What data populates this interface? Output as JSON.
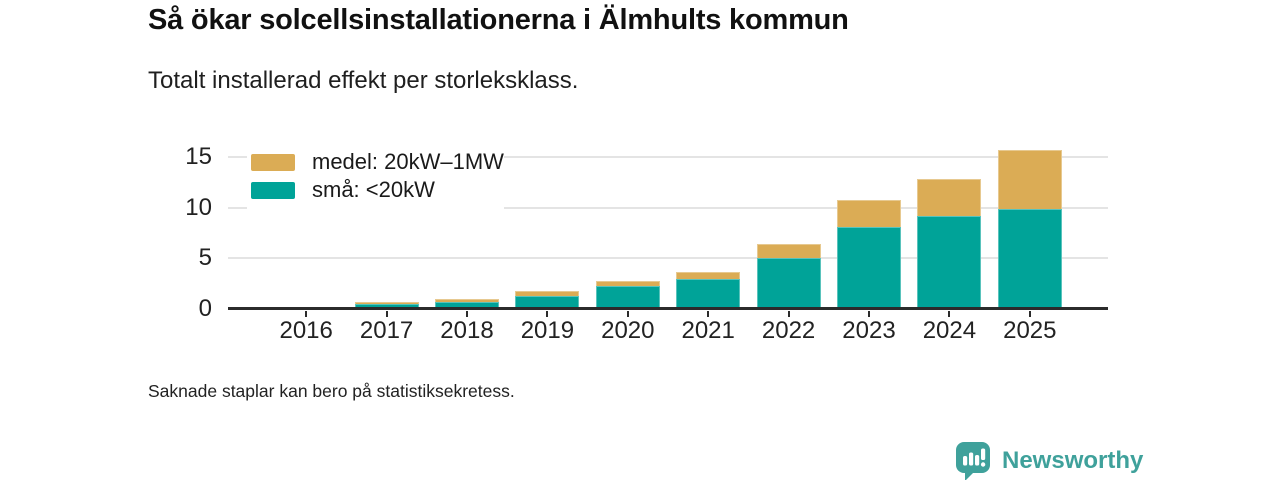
{
  "header": {
    "title": "Så ökar solcellsinstallationerna i Älmhults kommun",
    "subtitle": "Totalt installerad effekt per storleksklass."
  },
  "footnote": "Saknade staplar kan bero på statistiksekretess.",
  "logo": {
    "text": "Newsworthy",
    "color": "#3fa19b",
    "icon": "bar-chart-speech-bubble-icon"
  },
  "colors": {
    "background": "#ffffff",
    "axis": "#2b2b2b",
    "gridline": "#e4e4e4",
    "small_bars": "#00a398",
    "medium_bars": "#dbac55"
  },
  "chart_data": {
    "type": "bar",
    "stacked": true,
    "title": "Så ökar solcellsinstallationerna i Älmhults kommun",
    "subtitle": "Totalt installerad effekt per storleksklass.",
    "categories": [
      "2016",
      "2017",
      "2018",
      "2019",
      "2020",
      "2021",
      "2022",
      "2023",
      "2024",
      "2025"
    ],
    "series": [
      {
        "name": "små: <20kW",
        "color": "#00a398",
        "values": [
          0.2,
          0.45,
          0.7,
          1.3,
          2.3,
          3.0,
          5.0,
          8.1,
          9.2,
          9.9
        ]
      },
      {
        "name": "medel: 20kW–1MW",
        "color": "#dbac55",
        "values": [
          0,
          0.25,
          0.3,
          0.45,
          0.5,
          0.7,
          1.45,
          2.7,
          3.6,
          5.8
        ]
      }
    ],
    "totals": [
      0.2,
      0.7,
      1.0,
      1.75,
      2.8,
      3.7,
      6.45,
      10.8,
      12.8,
      15.7
    ],
    "legend": [
      {
        "label": "medel: 20kW–1MW",
        "color": "#dbac55"
      },
      {
        "label": "små: <20kW",
        "color": "#00a398"
      }
    ],
    "legend_position": "top-left-inside",
    "xlabel": "",
    "ylabel": "",
    "yticks": [
      0,
      5,
      10,
      15
    ],
    "ylim": [
      0,
      16.2
    ],
    "grid": "horizontal"
  }
}
